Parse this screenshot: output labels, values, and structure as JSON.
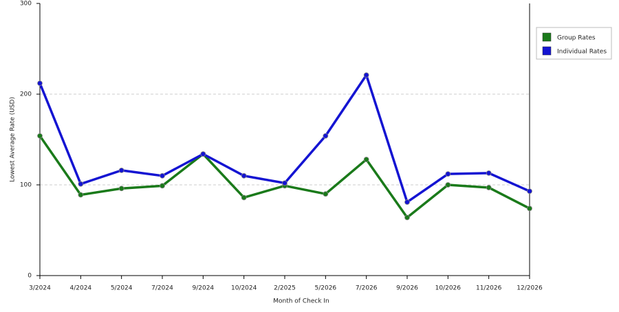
{
  "chart_data": {
    "type": "line",
    "x_label": "Month of Check In",
    "y_label": "Lowest Average Rate (USD)",
    "categories": [
      "3/2024",
      "4/2024",
      "5/2024",
      "7/2024",
      "9/2024",
      "10/2024",
      "2/2025",
      "5/2026",
      "7/2026",
      "9/2026",
      "10/2026",
      "11/2026",
      "12/2026"
    ],
    "series": [
      {
        "name": "Group Rates",
        "color": "#1a7a1a",
        "values": [
          154,
          89,
          96,
          99,
          134,
          86,
          99,
          90,
          128,
          64,
          100,
          97,
          74
        ]
      },
      {
        "name": "Individual Rates",
        "color": "#1414d2",
        "values": [
          212,
          101,
          116,
          110,
          134,
          110,
          102,
          154,
          221,
          81,
          112,
          113,
          93
        ]
      }
    ],
    "ylim": [
      0,
      300
    ],
    "yticks": [
      0,
      100,
      200,
      300
    ],
    "grid": true,
    "legend": "right"
  }
}
